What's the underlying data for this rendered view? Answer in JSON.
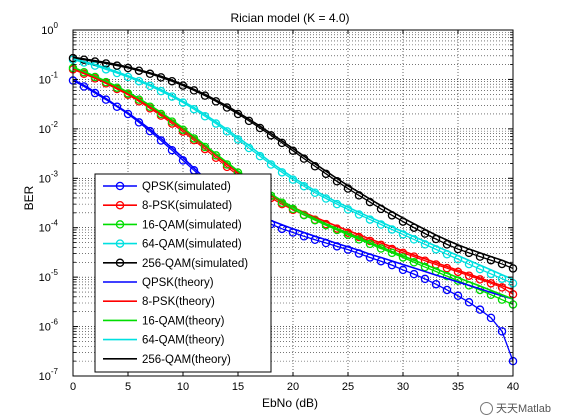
{
  "chart_data": {
    "type": "line",
    "title": "Rician model (K = 4.0)",
    "xlabel": "EbNo (dB)",
    "ylabel": "BER",
    "xlim": [
      0,
      40
    ],
    "ylim": [
      1e-07,
      1
    ],
    "yscale": "log",
    "xticks": [
      0,
      5,
      10,
      15,
      20,
      25,
      30,
      35,
      40
    ],
    "yticks": [
      {
        "base": "10",
        "exp": "0",
        "value": 1
      },
      {
        "base": "10",
        "exp": "-1",
        "value": 0.1
      },
      {
        "base": "10",
        "exp": "-2",
        "value": 0.01
      },
      {
        "base": "10",
        "exp": "-3",
        "value": 0.001
      },
      {
        "base": "10",
        "exp": "-4",
        "value": 0.0001
      },
      {
        "base": "10",
        "exp": "-5",
        "value": 1e-05
      },
      {
        "base": "10",
        "exp": "-6",
        "value": 1e-06
      },
      {
        "base": "10",
        "exp": "-7",
        "value": 1e-07
      }
    ],
    "grid": true,
    "legend_position": "bottom-left",
    "x": [
      0,
      1,
      2,
      3,
      4,
      5,
      6,
      7,
      8,
      9,
      10,
      11,
      12,
      13,
      14,
      15,
      16,
      17,
      18,
      19,
      20,
      21,
      22,
      23,
      24,
      25,
      26,
      27,
      28,
      29,
      30,
      31,
      32,
      33,
      34,
      35,
      36,
      37,
      38,
      39,
      40
    ],
    "series": [
      {
        "name": "QPSK(simulated)",
        "color": "#0000ff",
        "marker": "circle",
        "values": [
          0.095,
          0.072,
          0.053,
          0.039,
          0.028,
          0.02,
          0.0135,
          0.009,
          0.0058,
          0.0037,
          0.0023,
          0.00145,
          0.0009,
          0.00058,
          0.00039,
          0.00027,
          0.0002,
          0.00015,
          0.000118,
          9.5e-05,
          8e-05,
          6.7e-05,
          5.7e-05,
          4.9e-05,
          4.2e-05,
          3.6e-05,
          3e-05,
          2.5e-05,
          2.1e-05,
          1.75e-05,
          1.4e-05,
          1.15e-05,
          9.2e-06,
          7.2e-06,
          5.5e-06,
          4.2e-06,
          3.1e-06,
          2.2e-06,
          1.5e-06,
          8e-07,
          2e-07
        ]
      },
      {
        "name": "8-PSK(simulated)",
        "color": "#ff0000",
        "marker": "circle",
        "values": [
          0.16,
          0.13,
          0.105,
          0.083,
          0.064,
          0.049,
          0.036,
          0.026,
          0.0185,
          0.0128,
          0.0088,
          0.0059,
          0.0039,
          0.0026,
          0.0017,
          0.00115,
          0.00078,
          0.00055,
          0.0004,
          0.0003,
          0.00023,
          0.000182,
          0.000145,
          0.000118,
          9.6e-05,
          7.9e-05,
          6.5e-05,
          5.4e-05,
          4.5e-05,
          3.7e-05,
          3.1e-05,
          2.6e-05,
          2.15e-05,
          1.8e-05,
          1.52e-05,
          1.28e-05,
          1.07e-05,
          9e-06,
          7.5e-06,
          6.2e-06,
          4.5e-06
        ]
      },
      {
        "name": "16-QAM(simulated)",
        "color": "#00dd00",
        "marker": "circle",
        "values": [
          0.17,
          0.14,
          0.112,
          0.088,
          0.068,
          0.052,
          0.039,
          0.028,
          0.02,
          0.014,
          0.0096,
          0.0064,
          0.0043,
          0.0029,
          0.0019,
          0.0013,
          0.00088,
          0.00062,
          0.00044,
          0.00032,
          0.00024,
          0.00018,
          0.000142,
          0.000112,
          9e-05,
          7.2e-05,
          5.8e-05,
          4.7e-05,
          3.8e-05,
          3.1e-05,
          2.5e-05,
          2e-05,
          1.6e-05,
          1.3e-05,
          1.05e-05,
          8.5e-06,
          6.8e-06,
          5.5e-06,
          4.4e-06,
          3.5e-06,
          2.8e-06
        ]
      },
      {
        "name": "64-QAM(simulated)",
        "color": "#00e0e0",
        "marker": "circle",
        "values": [
          0.25,
          0.22,
          0.19,
          0.16,
          0.135,
          0.112,
          0.092,
          0.074,
          0.058,
          0.045,
          0.034,
          0.025,
          0.018,
          0.0128,
          0.0089,
          0.0061,
          0.0041,
          0.0028,
          0.0019,
          0.00132,
          0.00094,
          0.00069,
          0.00051,
          0.00039,
          0.0003,
          0.000235,
          0.000185,
          0.000146,
          0.000116,
          9.2e-05,
          7.3e-05,
          5.8e-05,
          4.6e-05,
          3.65e-05,
          2.9e-05,
          2.3e-05,
          1.83e-05,
          1.45e-05,
          1.16e-05,
          9.3e-06,
          7.5e-06
        ]
      },
      {
        "name": "256-QAM(simulated)",
        "color": "#000000",
        "marker": "circle",
        "values": [
          0.27,
          0.25,
          0.23,
          0.21,
          0.19,
          0.17,
          0.15,
          0.13,
          0.11,
          0.092,
          0.075,
          0.06,
          0.047,
          0.036,
          0.027,
          0.02,
          0.0145,
          0.0104,
          0.0074,
          0.0052,
          0.0036,
          0.0025,
          0.00175,
          0.00123,
          0.00087,
          0.00062,
          0.00045,
          0.00033,
          0.00024,
          0.000178,
          0.000133,
          0.0001,
          7.6e-05,
          5.9e-05,
          4.6e-05,
          3.7e-05,
          3.1e-05,
          2.6e-05,
          2.2e-05,
          1.85e-05,
          1.5e-05
        ]
      },
      {
        "name": "QPSK(theory)",
        "color": "#0000ff",
        "marker": "none",
        "values": [
          0.1,
          0.076,
          0.056,
          0.041,
          0.029,
          0.021,
          0.0145,
          0.0098,
          0.0064,
          0.0041,
          0.0026,
          0.0016,
          0.001,
          0.00065,
          0.00044,
          0.00031,
          0.00023,
          0.00018,
          0.00014,
          0.000115,
          9.5e-05,
          8e-05,
          6.7e-05,
          5.7e-05,
          4.8e-05,
          4.1e-05,
          3.5e-05,
          2.9e-05,
          2.5e-05,
          2.12e-05,
          1.8e-05,
          1.53e-05,
          1.3e-05,
          1.1e-05,
          9.4e-06,
          8e-06,
          6.8e-06,
          5.8e-06,
          4.9e-06,
          4.2e-06,
          3.6e-06
        ]
      },
      {
        "name": "8-PSK(theory)",
        "color": "#ff0000",
        "marker": "none",
        "values": [
          0.165,
          0.134,
          0.108,
          0.086,
          0.067,
          0.051,
          0.038,
          0.028,
          0.02,
          0.014,
          0.0097,
          0.0066,
          0.0044,
          0.0029,
          0.0019,
          0.00128,
          0.00088,
          0.00062,
          0.00045,
          0.00034,
          0.00026,
          0.000205,
          0.000163,
          0.000132,
          0.000107,
          8.8e-05,
          7.2e-05,
          5.9e-05,
          4.9e-05,
          4.1e-05,
          3.4e-05,
          2.8e-05,
          2.35e-05,
          1.96e-05,
          1.64e-05,
          1.37e-05,
          1.15e-05,
          9.6e-06,
          8e-06,
          6.7e-06,
          5.6e-06
        ]
      },
      {
        "name": "16-QAM(theory)",
        "color": "#00dd00",
        "marker": "none",
        "values": [
          0.175,
          0.144,
          0.116,
          0.092,
          0.072,
          0.055,
          0.041,
          0.03,
          0.0215,
          0.0151,
          0.0104,
          0.007,
          0.0047,
          0.0031,
          0.0021,
          0.0014,
          0.00096,
          0.00067,
          0.00048,
          0.00035,
          0.00026,
          0.000197,
          0.000153,
          0.00012,
          9.6e-05,
          7.7e-05,
          6.2e-05,
          5e-05,
          4.1e-05,
          3.3e-05,
          2.7e-05,
          2.2e-05,
          1.8e-05,
          1.47e-05,
          1.2e-05,
          9.8e-06,
          8e-06,
          6.6e-06,
          5.4e-06,
          4.4e-06,
          3.6e-06
        ]
      },
      {
        "name": "64-QAM(theory)",
        "color": "#00e0e0",
        "marker": "none",
        "values": [
          0.26,
          0.23,
          0.2,
          0.17,
          0.142,
          0.118,
          0.097,
          0.078,
          0.062,
          0.048,
          0.036,
          0.027,
          0.0195,
          0.0139,
          0.0097,
          0.0067,
          0.0046,
          0.0031,
          0.0021,
          0.00146,
          0.00104,
          0.00076,
          0.00056,
          0.00043,
          0.00033,
          0.00026,
          0.000205,
          0.000163,
          0.00013,
          0.000104,
          8.3e-05,
          6.6e-05,
          5.3e-05,
          4.25e-05,
          3.4e-05,
          2.72e-05,
          2.18e-05,
          1.75e-05,
          1.4e-05,
          1.12e-05,
          9e-06
        ]
      },
      {
        "name": "256-QAM(theory)",
        "color": "#000000",
        "marker": "none",
        "values": [
          0.28,
          0.26,
          0.24,
          0.22,
          0.2,
          0.178,
          0.157,
          0.136,
          0.116,
          0.097,
          0.079,
          0.063,
          0.05,
          0.038,
          0.029,
          0.0215,
          0.0157,
          0.0113,
          0.0081,
          0.0057,
          0.004,
          0.0028,
          0.00197,
          0.00139,
          0.00099,
          0.00071,
          0.00052,
          0.00038,
          0.00028,
          0.00021,
          0.000158,
          0.00012,
          9.2e-05,
          7.1e-05,
          5.6e-05,
          4.5e-05,
          3.7e-05,
          3.1e-05,
          2.6e-05,
          2.2e-05,
          1.8e-05
        ]
      }
    ]
  },
  "watermark": "天天Matlab"
}
